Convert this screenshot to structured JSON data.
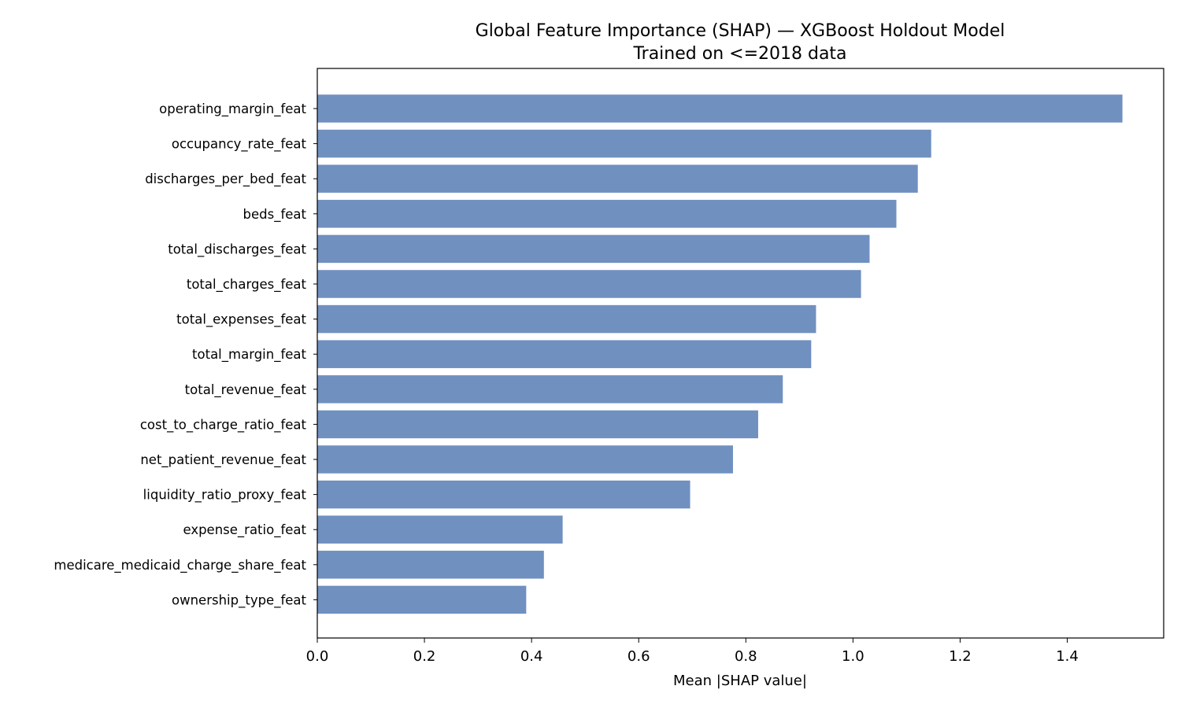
{
  "chart_data": {
    "type": "bar",
    "orientation": "horizontal",
    "title": "Global Feature Importance (SHAP) — XGBoost Holdout Model",
    "subtitle": "Trained on <=2018 data",
    "xlabel": "Mean |SHAP value|",
    "ylabel": "",
    "xlim": [
      0,
      1.58
    ],
    "xticks": [
      "0.0",
      "0.2",
      "0.4",
      "0.6",
      "0.8",
      "1.0",
      "1.2",
      "1.4"
    ],
    "grid": false,
    "bar_color": "#7090c0",
    "categories": [
      "operating_margin_feat",
      "occupancy_rate_feat",
      "discharges_per_bed_feat",
      "beds_feat",
      "total_discharges_feat",
      "total_charges_feat",
      "total_expenses_feat",
      "total_margin_feat",
      "total_revenue_feat",
      "cost_to_charge_ratio_feat",
      "net_patient_revenue_feat",
      "liquidity_ratio_proxy_feat",
      "expense_ratio_feat",
      "medicare_medicaid_charge_share_feat",
      "ownership_type_feat"
    ],
    "values": [
      1.503,
      1.146,
      1.121,
      1.081,
      1.031,
      1.015,
      0.931,
      0.922,
      0.869,
      0.823,
      0.776,
      0.696,
      0.458,
      0.423,
      0.39
    ]
  }
}
